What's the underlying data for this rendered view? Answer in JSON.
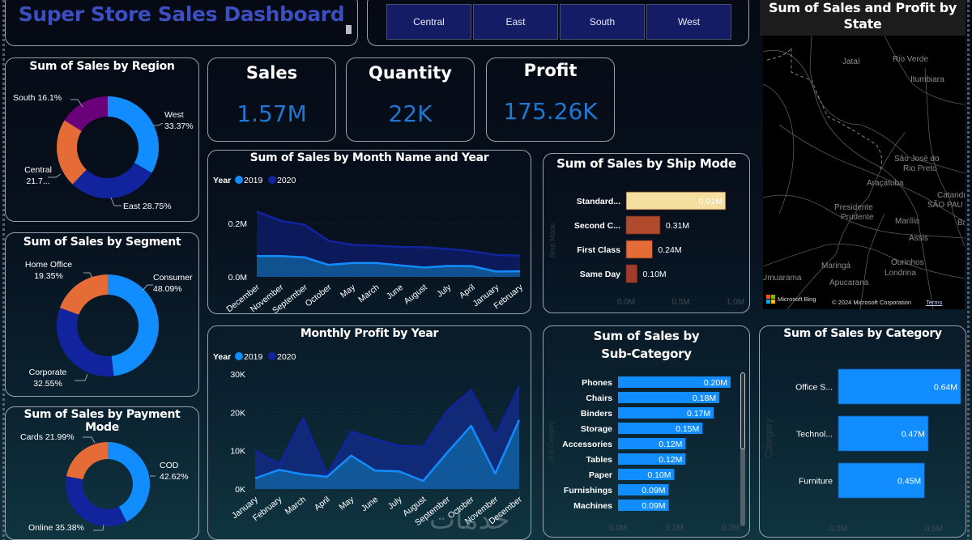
{
  "header": {
    "title": "Super Store Sales Dashboard",
    "region_slicer": [
      "Central",
      "East",
      "South",
      "West"
    ]
  },
  "kpis": [
    {
      "label": "Sales",
      "value": "1.57M"
    },
    {
      "label": "Quantity",
      "value": "22K"
    },
    {
      "label": "Profit",
      "value": "175.26K"
    }
  ],
  "colors": {
    "primary_blue": "#118dff",
    "dark_blue": "#12239e",
    "orange": "#e66c37",
    "purple": "#6b007b",
    "kpi_value": "#1e78d2",
    "title_blue": "#3b4fc0",
    "slicer_bg": "#141c66"
  },
  "chart_data": [
    {
      "id": "region",
      "type": "pie",
      "title": "Sum of Sales by Region",
      "donut": true,
      "slices": [
        {
          "label": "West",
          "value": 33.37,
          "display": "33.37%",
          "color": "#118dff"
        },
        {
          "label": "East",
          "value": 28.75,
          "display": "28.75%",
          "color": "#12239e"
        },
        {
          "label": "Central",
          "value": 21.78,
          "display": "21.7...",
          "color": "#e66c37"
        },
        {
          "label": "South",
          "value": 16.1,
          "display": "16.1%",
          "color": "#6b007b"
        }
      ]
    },
    {
      "id": "segment",
      "type": "pie",
      "title": "Sum of Sales by Segment",
      "donut": true,
      "slices": [
        {
          "label": "Consumer",
          "value": 48.09,
          "display": "48.09%",
          "color": "#118dff"
        },
        {
          "label": "Corporate",
          "value": 32.55,
          "display": "32.55%",
          "color": "#12239e"
        },
        {
          "label": "Home Office",
          "value": 19.35,
          "display": "19.35%",
          "color": "#e66c37"
        }
      ]
    },
    {
      "id": "payment",
      "type": "pie",
      "title": "Sum of Sales by Payment Mode",
      "donut": true,
      "slices": [
        {
          "label": "COD",
          "value": 42.62,
          "display": "42.62%",
          "color": "#118dff"
        },
        {
          "label": "Online",
          "value": 35.38,
          "display": "35.38%",
          "color": "#12239e"
        },
        {
          "label": "Cards",
          "value": 21.99,
          "display": "21.99%",
          "color": "#e66c37"
        }
      ]
    },
    {
      "id": "sales_month",
      "type": "area",
      "title": "Sum of Sales by Month Name and Year",
      "legend_title": "Year",
      "legend_position": "top-left",
      "categories": [
        "December",
        "November",
        "September",
        "October",
        "May",
        "March",
        "June",
        "August",
        "July",
        "April",
        "January",
        "February"
      ],
      "series": [
        {
          "name": "2019",
          "color": "#118dff",
          "values": [
            0.078,
            0.078,
            0.073,
            0.045,
            0.052,
            0.052,
            0.043,
            0.035,
            0.041,
            0.04,
            0.02,
            0.021
          ]
        },
        {
          "name": "2020",
          "color": "#12239e",
          "values": [
            0.245,
            0.21,
            0.195,
            0.135,
            0.12,
            0.117,
            0.112,
            0.111,
            0.104,
            0.096,
            0.082,
            0.08
          ]
        }
      ],
      "yticks": [
        "0.0M",
        "0.2M"
      ],
      "ytick_values": [
        0,
        0.2
      ],
      "ylim": [
        0,
        0.3
      ],
      "xlabel": "",
      "ylabel": ""
    },
    {
      "id": "profit_month",
      "type": "area",
      "title": "Monthly Profit by Year",
      "legend_title": "Year",
      "legend_position": "top-left",
      "categories": [
        "January",
        "February",
        "March",
        "April",
        "May",
        "June",
        "July",
        "August",
        "September",
        "October",
        "November",
        "December"
      ],
      "series": [
        {
          "name": "2019",
          "color": "#118dff",
          "values": [
            2800,
            5000,
            3800,
            3200,
            8700,
            4800,
            4600,
            2100,
            9500,
            16500,
            4000,
            18000
          ]
        },
        {
          "name": "2020",
          "color": "#12239e",
          "values": [
            10000,
            6500,
            18500,
            3700,
            15000,
            13000,
            11300,
            11000,
            20500,
            25800,
            13700,
            26800
          ]
        }
      ],
      "yticks": [
        "0K",
        "10K",
        "20K",
        "30K"
      ],
      "ytick_values": [
        0,
        10000,
        20000,
        30000
      ],
      "ylim": [
        0,
        30000
      ],
      "xlabel": "",
      "ylabel": ""
    },
    {
      "id": "ship_mode",
      "type": "bar",
      "orientation": "horizontal",
      "title": "Sum of Sales by Ship Mode",
      "ylabel": "Ship Mode",
      "categories": [
        "Standard...",
        "Second C...",
        "First Class",
        "Same Day"
      ],
      "values": [
        0.91,
        0.31,
        0.24,
        0.1
      ],
      "value_labels": [
        "0.91M",
        "0.31M",
        "0.24M",
        "0.10M"
      ],
      "colors": [
        "#f4deA0",
        "#b04a2c",
        "#e66c37",
        "#a43c2c"
      ],
      "xticks": [
        "0.0M",
        "0.5M",
        "1.0M"
      ],
      "xlim": [
        0,
        1.0
      ]
    },
    {
      "id": "sub_category",
      "type": "bar",
      "orientation": "horizontal",
      "title": "Sum of Sales by Sub-Category",
      "title_lines": [
        "Sum of Sales by",
        "Sub-Category"
      ],
      "ylabel": "Sub-Category",
      "categories": [
        "Phones",
        "Chairs",
        "Binders",
        "Storage",
        "Accessories",
        "Tables",
        "Paper",
        "Furnishings",
        "Machines"
      ],
      "values": [
        0.2,
        0.18,
        0.17,
        0.15,
        0.12,
        0.12,
        0.1,
        0.09,
        0.09
      ],
      "value_labels": [
        "0.20M",
        "0.18M",
        "0.17M",
        "0.15M",
        "0.12M",
        "0.12M",
        "0.10M",
        "0.09M",
        "0.09M"
      ],
      "color": "#118dff",
      "xticks": [
        "0.0M",
        "0.1M",
        "0.2M"
      ],
      "xlim": [
        0,
        0.2
      ]
    },
    {
      "id": "category",
      "type": "bar",
      "orientation": "horizontal",
      "title": "Sum of Sales by Category",
      "ylabel": "Category",
      "categories": [
        "Office S...",
        "Technol...",
        "Furniture"
      ],
      "values": [
        0.64,
        0.47,
        0.45
      ],
      "value_labels": [
        "0.64M",
        "0.47M",
        "0.45M"
      ],
      "color": "#118dff",
      "xticks": [
        "0.0M",
        "0.5M"
      ],
      "xlim": [
        0,
        0.7
      ]
    }
  ],
  "map": {
    "title_lines": [
      "Sum of Sales and Profit by",
      "State"
    ],
    "places": [
      "Jataí",
      "Rio Verde",
      "Itumbiara",
      "São José do",
      "Rio Preto",
      "Araçatuba",
      "Catandu",
      "SÃO PAU",
      "Presidente",
      "Prudente",
      "Marília",
      "Ba",
      "Assis",
      "Ourinhos",
      "Maringá",
      "Londrina",
      "Umuarama",
      "Apucarana"
    ],
    "attribution_brand": "Microsoft Bing",
    "copyright": "© 2024 Microsoft Corporation",
    "terms": "Terms"
  },
  "watermark": "خدمات"
}
